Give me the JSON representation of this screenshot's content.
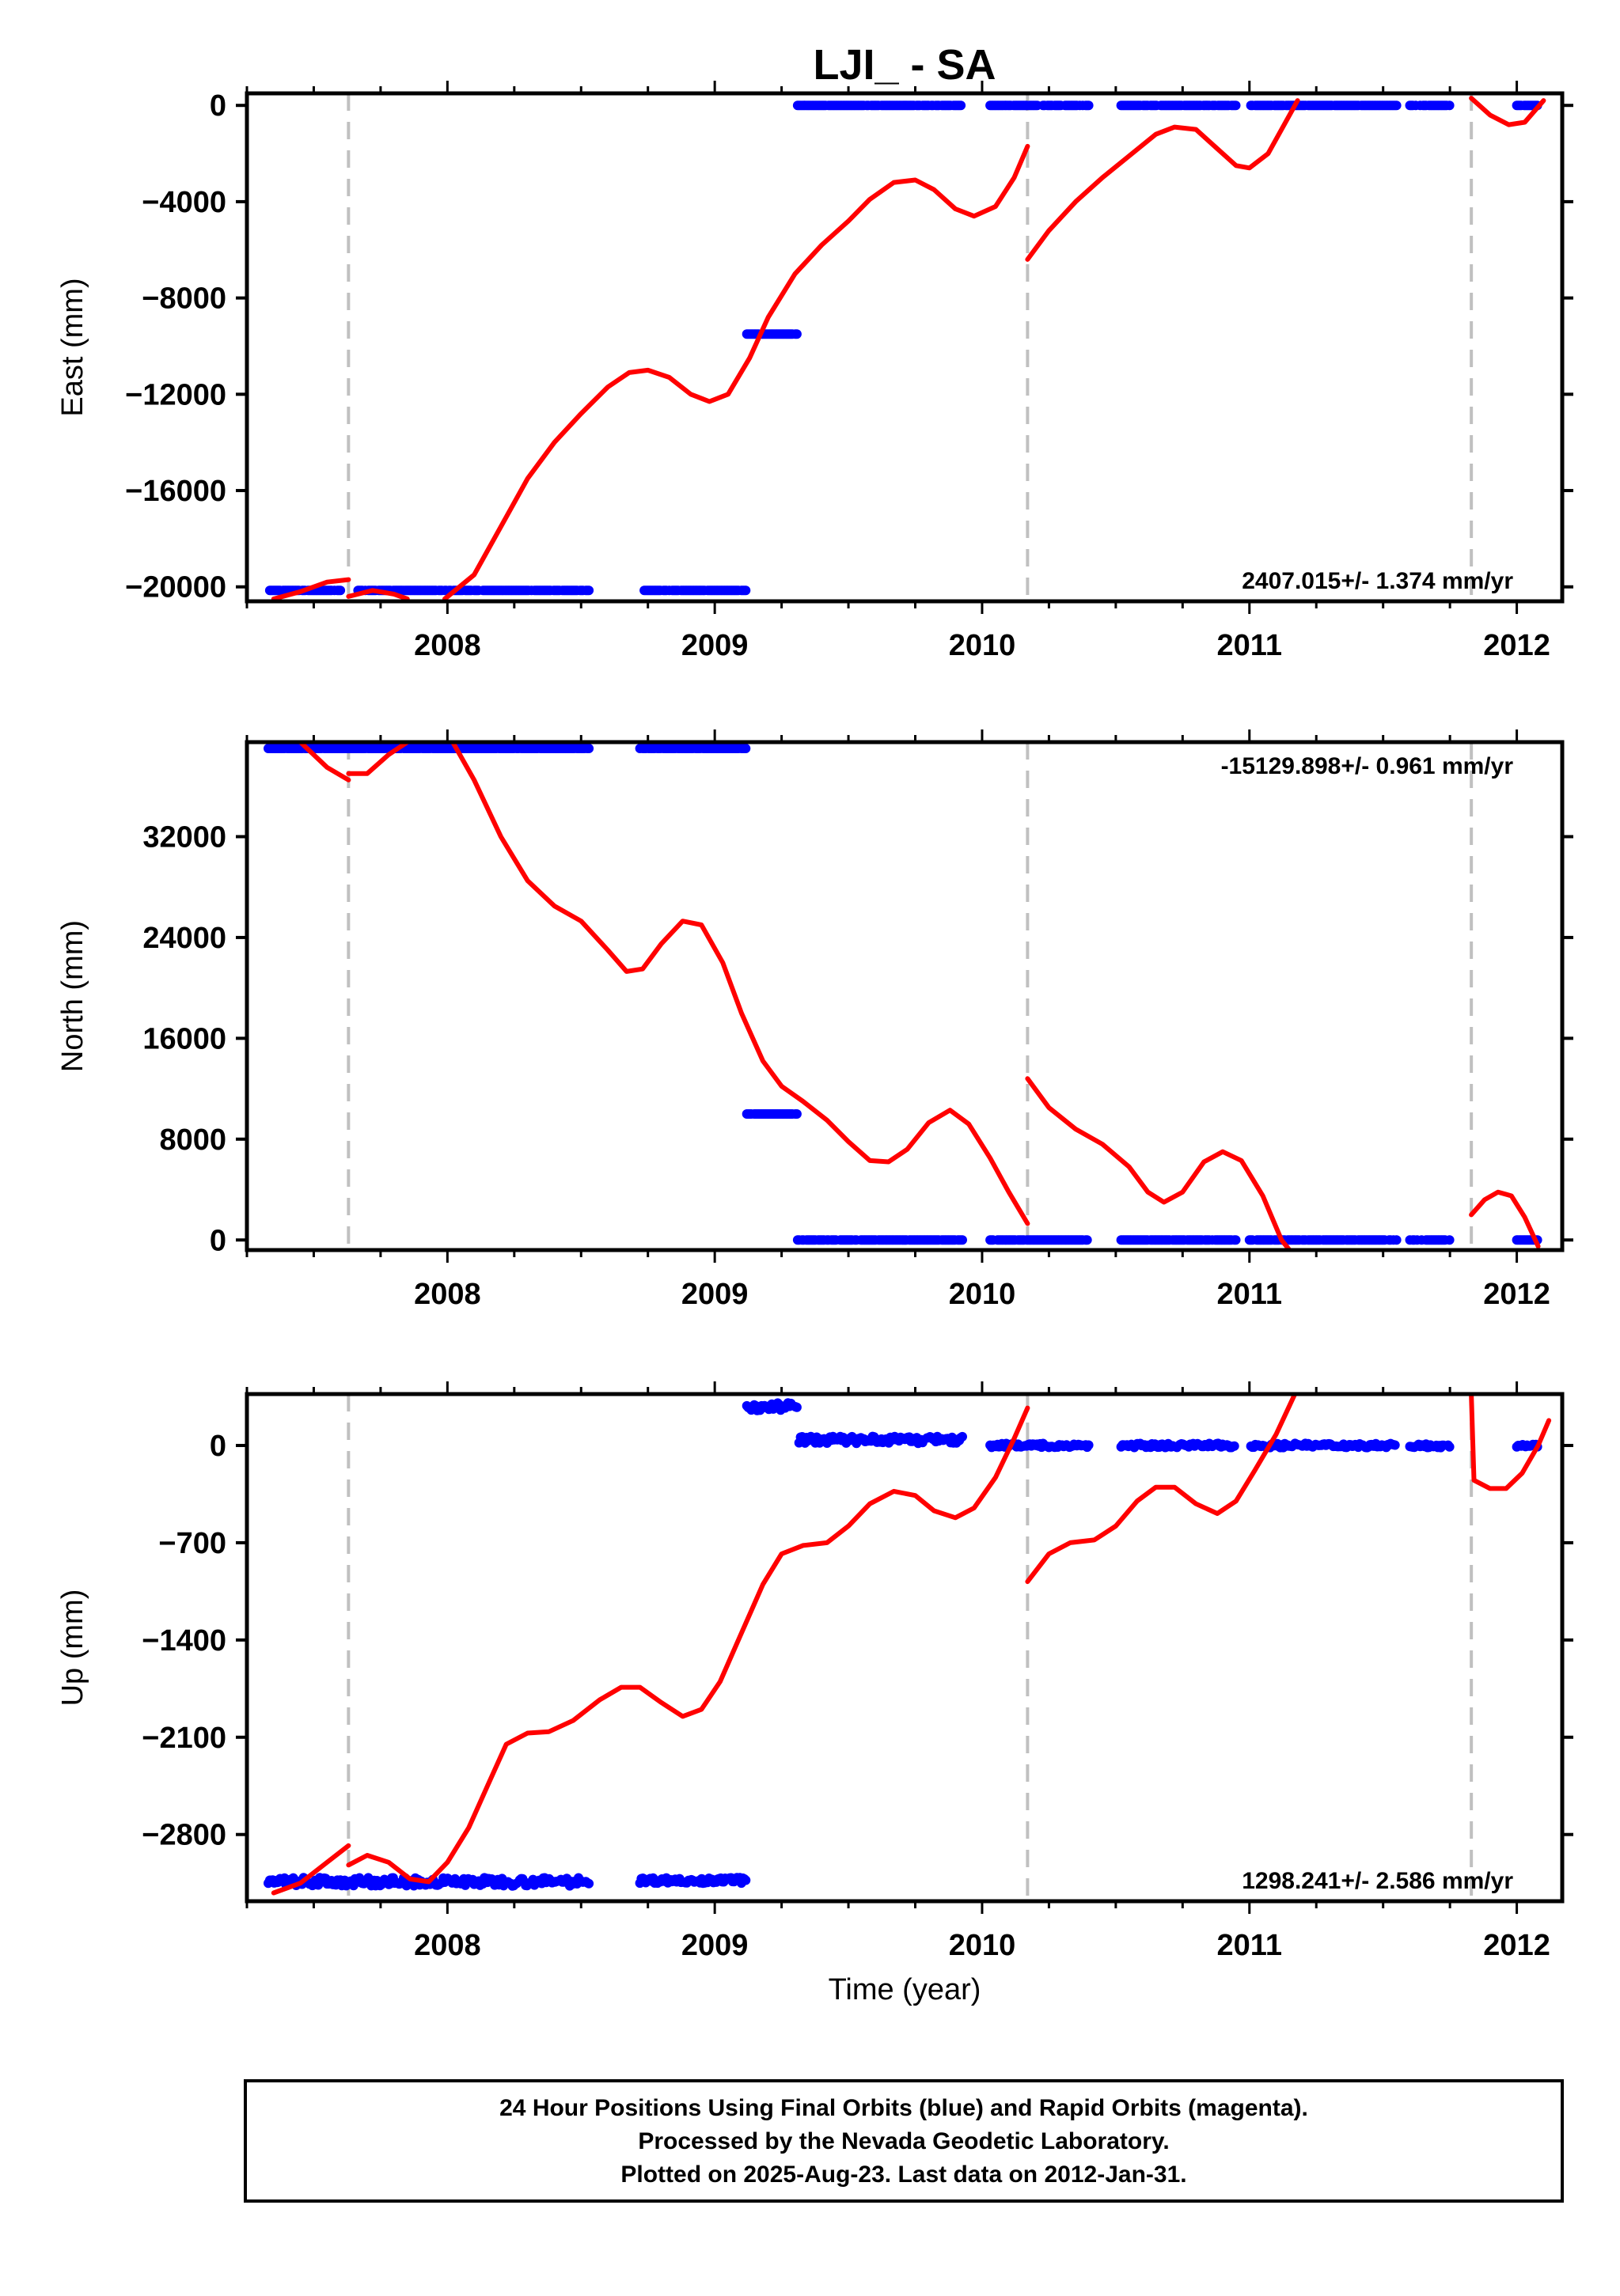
{
  "title": "LJI_ - SA",
  "footer": {
    "lines": [
      "24 Hour Positions Using Final Orbits (blue) and Rapid Orbits (magenta).",
      "Processed by the Nevada Geodetic Laboratory.",
      "Plotted on 2025-Aug-23. Last data on 2012-Jan-31."
    ]
  },
  "colors": {
    "final_orbits": "#0000ff",
    "model": "#ff0000",
    "steps": "#c0c0c0",
    "frame": "#000000"
  },
  "chart_data": [
    {
      "type": "scatter",
      "name": "east",
      "ylabel": "East (mm)",
      "xlabel": "",
      "xlim": [
        2007.25,
        2012.17
      ],
      "ylim": [
        -20600,
        500
      ],
      "xticks": [
        2008,
        2009,
        2010,
        2011,
        2012
      ],
      "yticks": [
        0,
        -4000,
        -8000,
        -12000,
        -16000,
        -20000
      ],
      "ytick_labels": [
        "0",
        "−4000",
        "−8000",
        "−12000",
        "−16000",
        "−20000"
      ],
      "rate_label": "2407.015+/- 1.374 mm/yr",
      "rate_position": "bottom-right",
      "step_epochs": [
        2007.63,
        2010.17,
        2011.83
      ],
      "points": [
        {
          "x_start": 2007.33,
          "x_end": 2008.53,
          "y": -20150,
          "gaps": [
            [
              2007.6,
              2007.66
            ]
          ]
        },
        {
          "x_start": 2008.72,
          "x_end": 2009.12,
          "y": -20150
        },
        {
          "x_start": 2009.12,
          "x_end": 2009.31,
          "y": -9500
        },
        {
          "x_start": 2009.31,
          "x_end": 2009.93,
          "y": 0
        },
        {
          "x_start": 2010.03,
          "x_end": 2010.4,
          "y": 0
        },
        {
          "x_start": 2010.52,
          "x_end": 2010.95,
          "y": 0
        },
        {
          "x_start": 2011.0,
          "x_end": 2011.55,
          "y": 0
        },
        {
          "x_start": 2011.6,
          "x_end": 2011.75,
          "y": 0
        },
        {
          "x_start": 2012.0,
          "x_end": 2012.08,
          "y": 0
        }
      ],
      "model": [
        [
          [
            2007.35,
            -20500
          ],
          [
            2007.45,
            -20200
          ],
          [
            2007.55,
            -19800
          ],
          [
            2007.63,
            -19700
          ]
        ],
        [
          [
            2007.63,
            -20400
          ],
          [
            2007.72,
            -20150
          ],
          [
            2007.8,
            -20300
          ],
          [
            2007.85,
            -20500
          ]
        ],
        [
          [
            2007.99,
            -20500
          ],
          [
            2008.1,
            -19500
          ],
          [
            2008.2,
            -17500
          ],
          [
            2008.3,
            -15500
          ],
          [
            2008.4,
            -14000
          ],
          [
            2008.5,
            -12800
          ],
          [
            2008.6,
            -11700
          ],
          [
            2008.68,
            -11100
          ],
          [
            2008.75,
            -11000
          ],
          [
            2008.83,
            -11300
          ],
          [
            2008.91,
            -12000
          ],
          [
            2008.98,
            -12300
          ],
          [
            2009.05,
            -12000
          ],
          [
            2009.13,
            -10500
          ],
          [
            2009.2,
            -8800
          ],
          [
            2009.3,
            -7000
          ],
          [
            2009.4,
            -5800
          ],
          [
            2009.5,
            -4800
          ],
          [
            2009.58,
            -3900
          ],
          [
            2009.67,
            -3200
          ],
          [
            2009.75,
            -3100
          ],
          [
            2009.82,
            -3500
          ],
          [
            2009.9,
            -4300
          ],
          [
            2009.97,
            -4600
          ],
          [
            2010.05,
            -4200
          ],
          [
            2010.12,
            -3000
          ],
          [
            2010.17,
            -1700
          ]
        ],
        [
          [
            2010.17,
            -6400
          ],
          [
            2010.25,
            -5200
          ],
          [
            2010.35,
            -4000
          ],
          [
            2010.45,
            -3000
          ],
          [
            2010.55,
            -2100
          ],
          [
            2010.65,
            -1200
          ],
          [
            2010.72,
            -900
          ],
          [
            2010.8,
            -1000
          ],
          [
            2010.88,
            -1800
          ],
          [
            2010.95,
            -2500
          ],
          [
            2011.0,
            -2600
          ],
          [
            2011.07,
            -2000
          ],
          [
            2011.13,
            -800
          ],
          [
            2011.18,
            200
          ]
        ],
        [
          [
            2011.83,
            300
          ],
          [
            2011.9,
            -400
          ],
          [
            2011.97,
            -800
          ],
          [
            2012.03,
            -700
          ],
          [
            2012.1,
            200
          ]
        ]
      ]
    },
    {
      "type": "scatter",
      "name": "north",
      "ylabel": "North (mm)",
      "xlabel": "",
      "xlim": [
        2007.25,
        2012.17
      ],
      "ylim": [
        -800,
        39500
      ],
      "xticks": [
        2008,
        2009,
        2010,
        2011,
        2012
      ],
      "yticks": [
        0,
        8000,
        16000,
        24000,
        32000
      ],
      "ytick_labels": [
        "0",
        "8000",
        "16000",
        "24000",
        "32000"
      ],
      "rate_label": "-15129.898+/- 0.961 mm/yr",
      "rate_position": "top-right",
      "step_epochs": [
        2007.63,
        2010.17,
        2011.83
      ],
      "points": [
        {
          "x_start": 2007.33,
          "x_end": 2008.53,
          "y": 39000
        },
        {
          "x_start": 2008.72,
          "x_end": 2009.12,
          "y": 39000
        },
        {
          "x_start": 2009.12,
          "x_end": 2009.31,
          "y": 10000
        },
        {
          "x_start": 2009.31,
          "x_end": 2009.93,
          "y": 0
        },
        {
          "x_start": 2010.03,
          "x_end": 2010.4,
          "y": 0
        },
        {
          "x_start": 2010.52,
          "x_end": 2010.95,
          "y": 0
        },
        {
          "x_start": 2011.0,
          "x_end": 2011.55,
          "y": 0
        },
        {
          "x_start": 2011.6,
          "x_end": 2011.75,
          "y": 0
        },
        {
          "x_start": 2012.0,
          "x_end": 2012.08,
          "y": 0
        }
      ],
      "model": [
        [
          [
            2007.45,
            39500
          ],
          [
            2007.55,
            37500
          ],
          [
            2007.63,
            36500
          ]
        ],
        [
          [
            2007.63,
            37000
          ],
          [
            2007.7,
            37000
          ],
          [
            2007.78,
            38500
          ],
          [
            2007.85,
            39500
          ]
        ],
        [
          [
            2008.02,
            39500
          ],
          [
            2008.1,
            36500
          ],
          [
            2008.2,
            32000
          ],
          [
            2008.3,
            28500
          ],
          [
            2008.4,
            26500
          ],
          [
            2008.5,
            25300
          ],
          [
            2008.6,
            23000
          ],
          [
            2008.67,
            21300
          ],
          [
            2008.73,
            21500
          ],
          [
            2008.8,
            23500
          ],
          [
            2008.88,
            25300
          ],
          [
            2008.95,
            25000
          ],
          [
            2009.03,
            22000
          ],
          [
            2009.1,
            18000
          ],
          [
            2009.18,
            14200
          ],
          [
            2009.25,
            12200
          ],
          [
            2009.33,
            11000
          ],
          [
            2009.42,
            9500
          ],
          [
            2009.5,
            7800
          ],
          [
            2009.58,
            6300
          ],
          [
            2009.65,
            6200
          ],
          [
            2009.72,
            7200
          ],
          [
            2009.8,
            9300
          ],
          [
            2009.88,
            10300
          ],
          [
            2009.95,
            9200
          ],
          [
            2010.03,
            6500
          ],
          [
            2010.1,
            3800
          ],
          [
            2010.17,
            1300
          ]
        ],
        [
          [
            2010.17,
            12800
          ],
          [
            2010.25,
            10500
          ],
          [
            2010.35,
            8800
          ],
          [
            2010.45,
            7600
          ],
          [
            2010.55,
            5800
          ],
          [
            2010.62,
            3800
          ],
          [
            2010.68,
            3000
          ],
          [
            2010.75,
            3800
          ],
          [
            2010.83,
            6200
          ],
          [
            2010.9,
            7000
          ],
          [
            2010.97,
            6300
          ],
          [
            2011.05,
            3500
          ],
          [
            2011.12,
            0
          ],
          [
            2011.15,
            -800
          ]
        ],
        [
          [
            2011.83,
            2000
          ],
          [
            2011.88,
            3200
          ],
          [
            2011.93,
            3800
          ],
          [
            2011.98,
            3500
          ],
          [
            2012.03,
            1800
          ],
          [
            2012.08,
            -500
          ]
        ]
      ]
    },
    {
      "type": "scatter",
      "name": "up",
      "ylabel": "Up (mm)",
      "xlabel": "Time (year)",
      "xlim": [
        2007.25,
        2012.17
      ],
      "ylim": [
        -3280,
        370
      ],
      "xticks": [
        2008,
        2009,
        2010,
        2011,
        2012
      ],
      "yticks": [
        0,
        -700,
        -1400,
        -2100,
        -2800
      ],
      "ytick_labels": [
        "0",
        "−700",
        "−1400",
        "−2100",
        "−2800"
      ],
      "rate_label": "1298.241+/- 2.586 mm/yr",
      "rate_position": "bottom-right",
      "step_epochs": [
        2007.63,
        2010.17,
        2011.83
      ],
      "points": [
        {
          "x_start": 2007.33,
          "x_end": 2008.53,
          "y": -3140,
          "noise": 30
        },
        {
          "x_start": 2008.72,
          "x_end": 2009.12,
          "y": -3130,
          "noise": 20
        },
        {
          "x_start": 2009.12,
          "x_end": 2009.31,
          "y": 280,
          "noise": 30
        },
        {
          "x_start": 2009.31,
          "x_end": 2009.93,
          "y": 40,
          "noise": 25
        },
        {
          "x_start": 2010.03,
          "x_end": 2010.4,
          "y": 0,
          "noise": 15
        },
        {
          "x_start": 2010.52,
          "x_end": 2010.95,
          "y": 0,
          "noise": 15
        },
        {
          "x_start": 2011.0,
          "x_end": 2011.55,
          "y": 0,
          "noise": 15
        },
        {
          "x_start": 2011.6,
          "x_end": 2011.75,
          "y": 0,
          "noise": 15
        },
        {
          "x_start": 2012.0,
          "x_end": 2012.08,
          "y": 0,
          "noise": 10
        }
      ],
      "model": [
        [
          [
            2007.35,
            -3220
          ],
          [
            2007.45,
            -3150
          ],
          [
            2007.55,
            -3000
          ],
          [
            2007.63,
            -2880
          ]
        ],
        [
          [
            2007.63,
            -3020
          ],
          [
            2007.7,
            -2950
          ],
          [
            2007.78,
            -3000
          ],
          [
            2007.86,
            -3120
          ],
          [
            2007.93,
            -3140
          ],
          [
            2008.0,
            -3000
          ],
          [
            2008.08,
            -2750
          ],
          [
            2008.15,
            -2450
          ],
          [
            2008.22,
            -2150
          ],
          [
            2008.3,
            -2070
          ],
          [
            2008.38,
            -2060
          ],
          [
            2008.47,
            -1980
          ],
          [
            2008.57,
            -1830
          ],
          [
            2008.65,
            -1740
          ],
          [
            2008.72,
            -1740
          ],
          [
            2008.8,
            -1850
          ],
          [
            2008.88,
            -1950
          ],
          [
            2008.95,
            -1900
          ],
          [
            2009.02,
            -1700
          ],
          [
            2009.1,
            -1350
          ],
          [
            2009.18,
            -1000
          ],
          [
            2009.25,
            -780
          ],
          [
            2009.33,
            -720
          ],
          [
            2009.42,
            -700
          ],
          [
            2009.5,
            -580
          ],
          [
            2009.58,
            -420
          ],
          [
            2009.67,
            -330
          ],
          [
            2009.75,
            -360
          ],
          [
            2009.82,
            -470
          ],
          [
            2009.9,
            -520
          ],
          [
            2009.97,
            -450
          ],
          [
            2010.05,
            -230
          ],
          [
            2010.12,
            50
          ],
          [
            2010.17,
            270
          ]
        ],
        [
          [
            2010.17,
            -980
          ],
          [
            2010.25,
            -780
          ],
          [
            2010.33,
            -700
          ],
          [
            2010.42,
            -680
          ],
          [
            2010.5,
            -580
          ],
          [
            2010.58,
            -400
          ],
          [
            2010.65,
            -300
          ],
          [
            2010.72,
            -300
          ],
          [
            2010.8,
            -420
          ],
          [
            2010.88,
            -490
          ],
          [
            2010.95,
            -400
          ],
          [
            2011.02,
            -180
          ],
          [
            2011.1,
            80
          ],
          [
            2011.17,
            370
          ]
        ],
        [
          [
            2011.83,
            370
          ],
          [
            2011.84,
            -250
          ],
          [
            2011.9,
            -310
          ],
          [
            2011.96,
            -310
          ],
          [
            2012.02,
            -200
          ],
          [
            2012.08,
            0
          ],
          [
            2012.12,
            180
          ]
        ]
      ]
    }
  ]
}
